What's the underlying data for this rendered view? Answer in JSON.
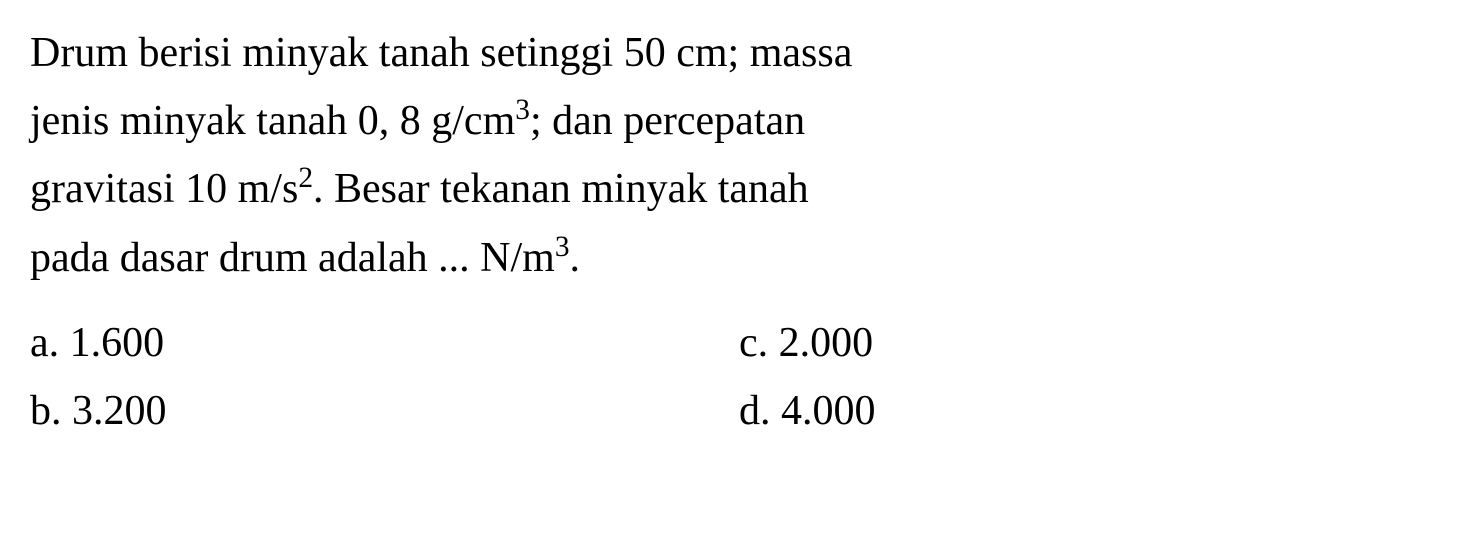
{
  "question": {
    "line1": "Drum berisi minyak tanah setinggi 50 cm; massa",
    "line2_pre": "jenis minyak tanah 0, 8 g/cm",
    "line2_sup": "3",
    "line2_post": "; dan percepatan",
    "line3_pre": "gravitasi 10 m/s",
    "line3_sup": "2",
    "line3_post": ". Besar tekanan minyak tanah",
    "line4_pre": "pada dasar drum adalah ... N/m",
    "line4_sup": "3",
    "line4_post": "."
  },
  "options": {
    "a": "a. 1.600",
    "b": "b. 3.200",
    "c": "c. 2.000",
    "d": "d. 4.000"
  },
  "style": {
    "font_family": "Times New Roman",
    "font_size_pt": 42,
    "text_color": "#000000",
    "background_color": "#ffffff"
  }
}
